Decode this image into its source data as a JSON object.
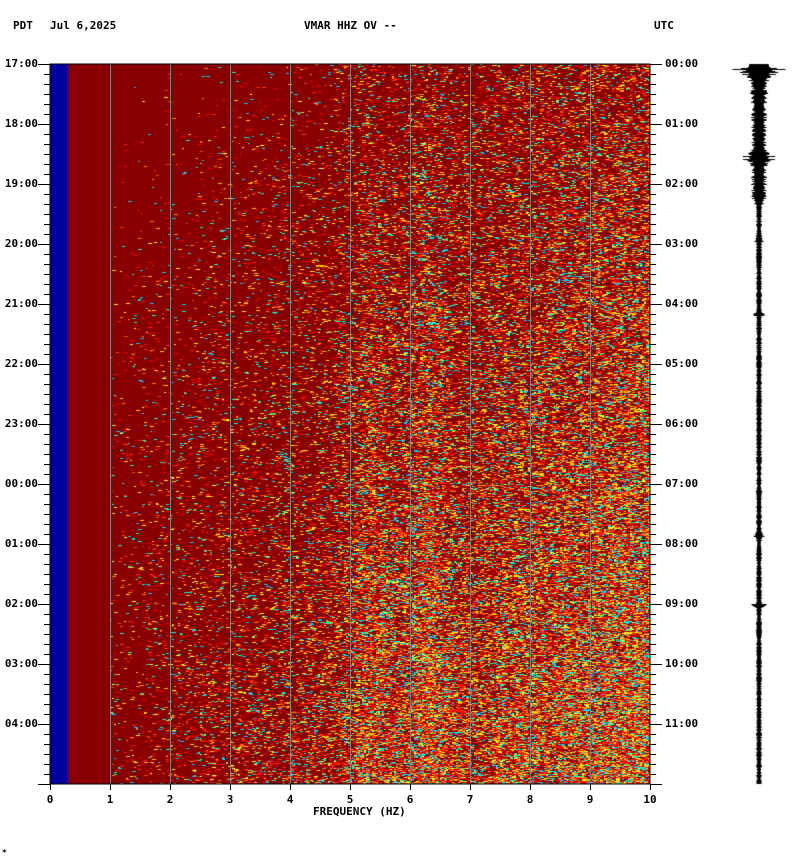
{
  "header": {
    "left_tz": "PDT",
    "date": "Jul 6,2025",
    "station": "VMAR HHZ OV --",
    "right_tz": "UTC"
  },
  "footer_mark": "*",
  "chart_data": {
    "type": "heatmap",
    "title": "VMAR HHZ OV --",
    "xlabel": "FREQUENCY (HZ)",
    "xlim": [
      0,
      10
    ],
    "x_ticks": [
      "0",
      "1",
      "2",
      "3",
      "4",
      "5",
      "6",
      "7",
      "8",
      "9",
      "10"
    ],
    "y_left_label": "PDT",
    "y_left_ticks": [
      "17:00",
      "18:00",
      "19:00",
      "20:00",
      "21:00",
      "22:00",
      "23:00",
      "00:00",
      "01:00",
      "02:00",
      "03:00",
      "04:00"
    ],
    "y_right_label": "UTC",
    "y_right_ticks": [
      "00:00",
      "01:00",
      "02:00",
      "03:00",
      "04:00",
      "05:00",
      "06:00",
      "07:00",
      "08:00",
      "09:00",
      "10:00",
      "11:00"
    ],
    "hours_span": 12,
    "grid": true,
    "colors": {
      "background": "#880000",
      "low_band": "#0000a0",
      "grid": "#808080"
    },
    "notes_visible": "power increases with frequency and time; low band below 0.3 Hz shown blue"
  }
}
